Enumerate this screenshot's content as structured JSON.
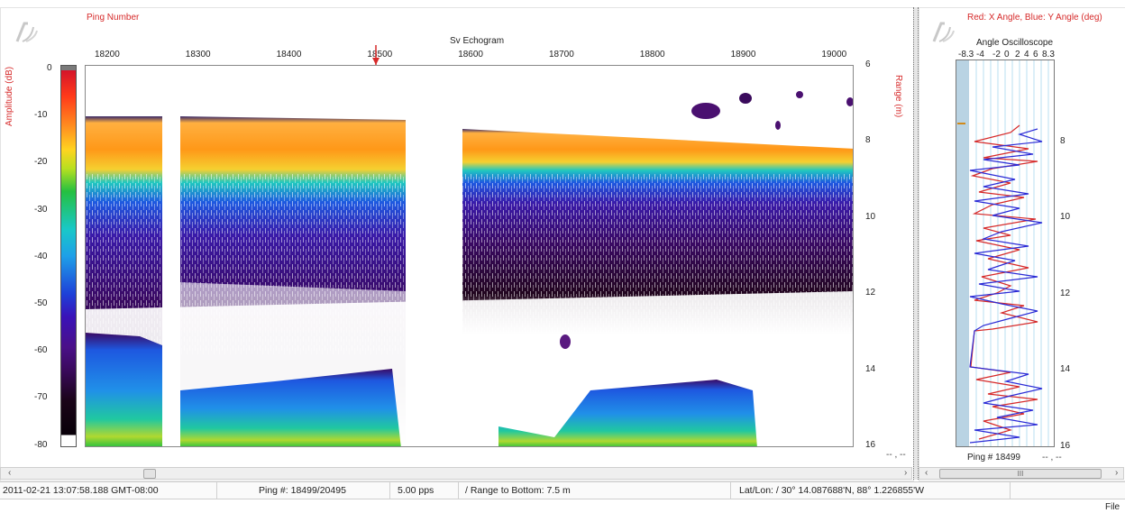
{
  "echogram": {
    "ping_number_label": "Ping Number",
    "title": "Sv Echogram",
    "x_ticks": [
      "18200",
      "18300",
      "18400",
      "18500",
      "18600",
      "18700",
      "18800",
      "18900",
      "19000"
    ],
    "amplitude_label": "Amplitude (dB)",
    "amplitude_ticks": [
      "0",
      "-10",
      "-20",
      "-30",
      "-40",
      "-50",
      "-60",
      "-70",
      "-80"
    ],
    "range_label": "Range (m)",
    "range_ticks": [
      "6",
      "8",
      "10",
      "12",
      "14",
      "16"
    ],
    "corner_value": "-- , --"
  },
  "oscilloscope": {
    "header_label": "Red: X Angle, Blue: Y Angle (deg)",
    "title": "Angle Oscilloscope",
    "x_ticks": [
      "-8.3",
      "-4",
      "-2",
      "0",
      "2",
      "4",
      "6",
      "8.3"
    ],
    "range_ticks": [
      "8",
      "10",
      "12",
      "14",
      "16"
    ],
    "ping_label": "Ping # 18499",
    "corner_value": "-- , --",
    "scroll_label": "III"
  },
  "status_bar": {
    "datetime": "2011-02-21 13:07:58.188 GMT-08:00",
    "ping": "Ping #: 18499/20495",
    "rate": "5.00 pps",
    "range_to_bottom": "/ Range to Bottom: 7.5 m",
    "latlon": "Lat/Lon: / 30° 14.087688'N, 88° 1.226855'W"
  },
  "footer": {
    "file_label": "File"
  },
  "colors": {
    "axis_label_red": "#d62a2a",
    "x_angle": "#d62a2a",
    "y_angle": "#2b2bd6"
  }
}
